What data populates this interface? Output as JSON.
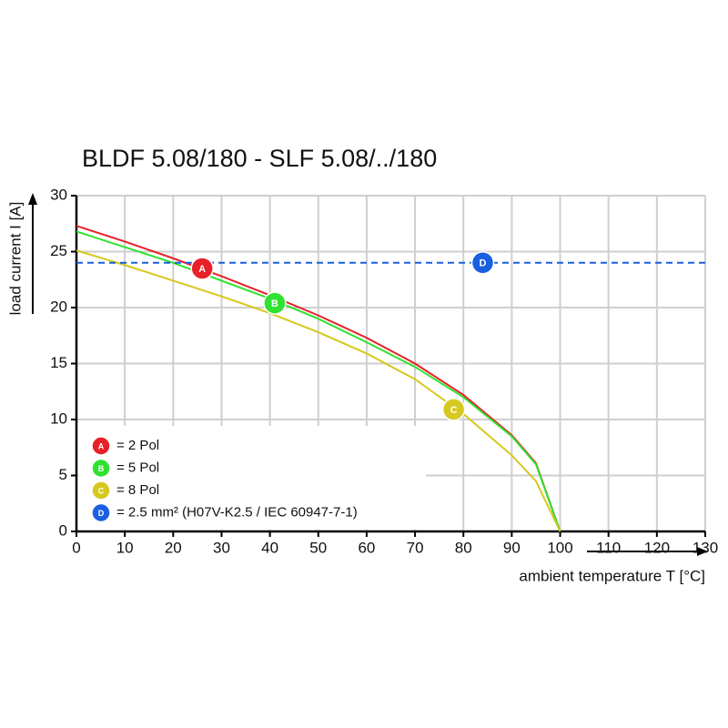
{
  "chart_data": {
    "type": "line",
    "title": "BLDF 5.08/180 - SLF 5.08/../180",
    "xlabel": "ambient temperature T [°C]",
    "ylabel": "load current I [A]",
    "xlim": [
      0,
      130
    ],
    "ylim": [
      0,
      30
    ],
    "xticks": [
      0,
      10,
      20,
      30,
      40,
      50,
      60,
      70,
      80,
      90,
      100,
      110,
      120,
      130
    ],
    "yticks": [
      0,
      5,
      10,
      15,
      20,
      25,
      30
    ],
    "grid": true,
    "series": [
      {
        "name": "= 2 Pol",
        "color": "#e8202a",
        "dashed": false,
        "x": [
          0,
          10,
          20,
          30,
          40,
          50,
          60,
          70,
          80,
          90,
          95,
          100
        ],
        "values": [
          27.3,
          25.9,
          24.4,
          22.8,
          21.1,
          19.3,
          17.3,
          15.0,
          12.2,
          8.6,
          6.1,
          0
        ],
        "marker": {
          "label": "A",
          "x": 26,
          "y": 23.5
        }
      },
      {
        "name": "= 5 Pol",
        "color": "#2fe22f",
        "dashed": false,
        "x": [
          0,
          10,
          20,
          30,
          40,
          50,
          60,
          70,
          80,
          90,
          95,
          100
        ],
        "values": [
          26.8,
          25.4,
          24.0,
          22.4,
          20.8,
          19.0,
          16.9,
          14.7,
          12.0,
          8.5,
          6.0,
          0
        ],
        "marker": {
          "label": "B",
          "x": 41,
          "y": 20.4
        }
      },
      {
        "name": "= 8 Pol",
        "color": "#d6c81e",
        "dashed": false,
        "x": [
          0,
          10,
          20,
          30,
          40,
          50,
          60,
          70,
          80,
          90,
          95,
          100
        ],
        "values": [
          25.1,
          23.8,
          22.4,
          21.0,
          19.5,
          17.8,
          15.9,
          13.6,
          10.5,
          6.8,
          4.5,
          0
        ],
        "marker": {
          "label": "C",
          "x": 78,
          "y": 10.9
        }
      },
      {
        "name": "= 2.5 mm² (H07V-K2.5 / IEC 60947-7-1)",
        "color": "#1a5fe0",
        "dashed": true,
        "x": [
          0,
          130
        ],
        "values": [
          24,
          24
        ],
        "marker": {
          "label": "D",
          "x": 84,
          "y": 24
        }
      }
    ]
  }
}
